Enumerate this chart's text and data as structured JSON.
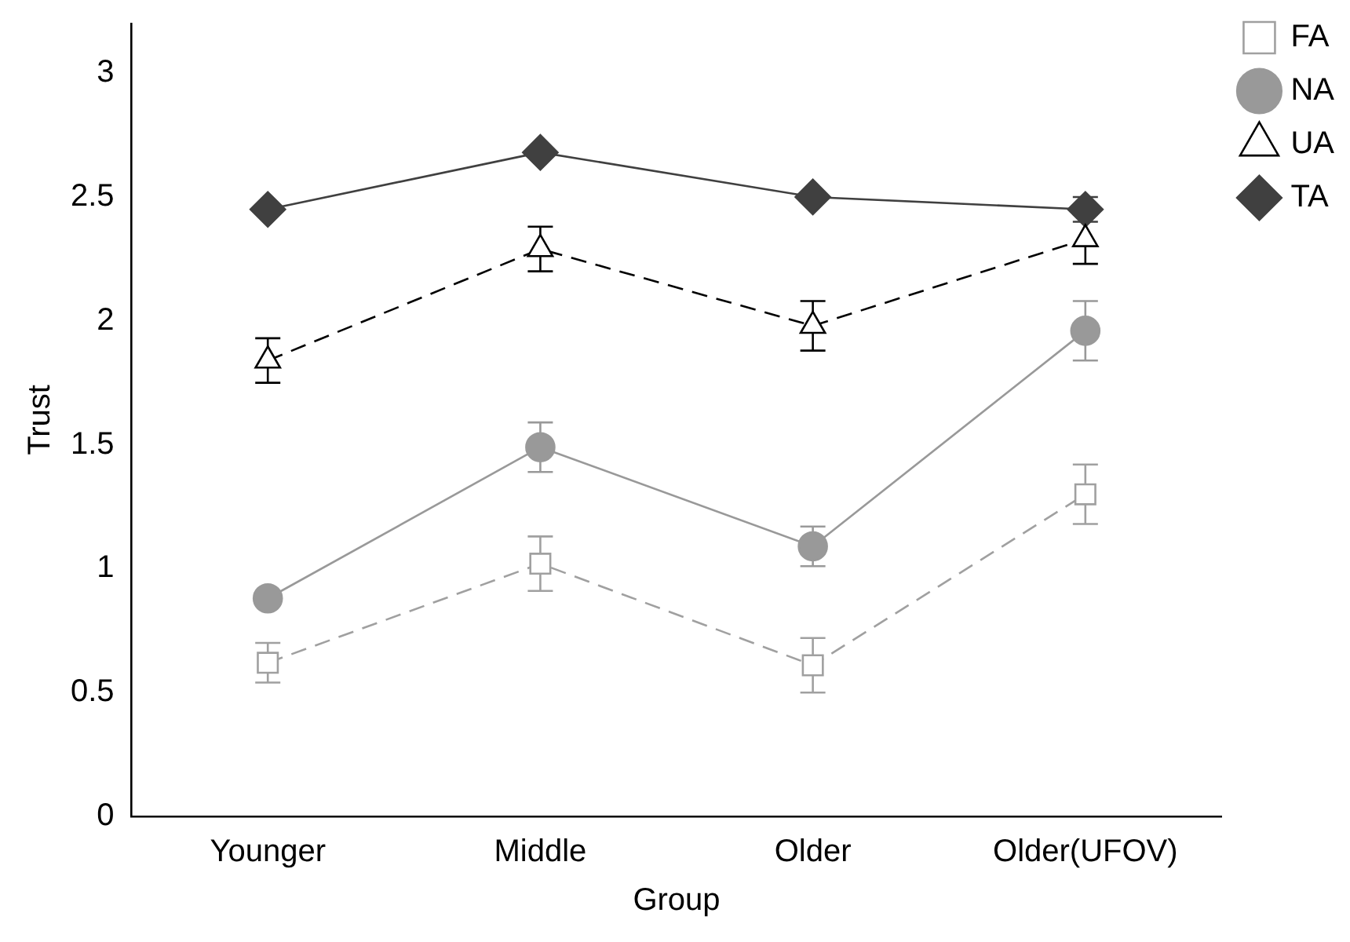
{
  "chart_data": {
    "type": "line",
    "xlabel": "Group",
    "ylabel": "Trust",
    "categories": [
      "Younger",
      "Middle",
      "Older",
      "Older(UFOV)"
    ],
    "ylim": [
      0,
      3.2
    ],
    "yticks": [
      0,
      0.5,
      1,
      1.5,
      2,
      2.5,
      3
    ],
    "grid": false,
    "legend": "top right",
    "series": [
      {
        "name": "FA",
        "color": "#a0a0a0",
        "marker": "square",
        "line_style": "dashed",
        "values": [
          0.62,
          1.02,
          0.61,
          1.3
        ],
        "errors": [
          0.08,
          0.11,
          0.11,
          0.12
        ]
      },
      {
        "name": "NA",
        "color": "#999999",
        "marker": "circle",
        "line_style": "solid",
        "values": [
          0.88,
          1.49,
          1.09,
          1.96
        ],
        "errors": [
          null,
          0.1,
          0.08,
          0.12
        ]
      },
      {
        "name": "UA",
        "color": "#000000",
        "marker": "triangle",
        "line_style": "dashed",
        "values": [
          1.84,
          2.29,
          1.98,
          2.33
        ],
        "errors": [
          0.09,
          0.09,
          0.1,
          0.1
        ]
      },
      {
        "name": "TA",
        "color": "#404040",
        "marker": "diamond",
        "line_style": "solid",
        "values": [
          2.45,
          2.68,
          2.5,
          2.45
        ],
        "errors": [
          null,
          null,
          null,
          0.05
        ]
      }
    ]
  }
}
